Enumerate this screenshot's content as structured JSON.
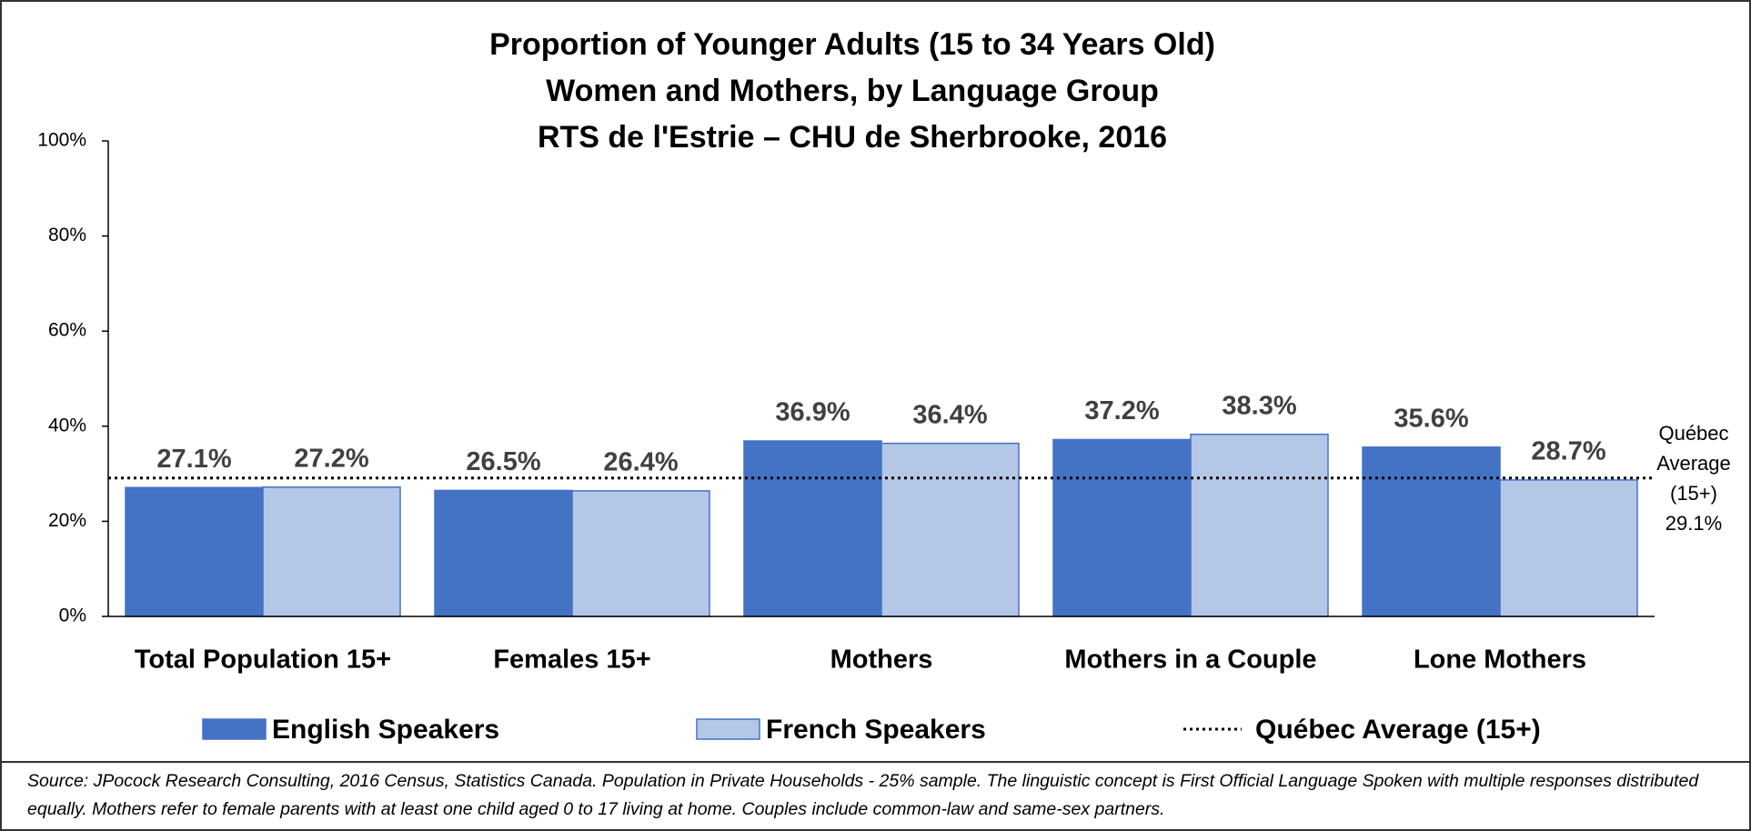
{
  "chart_data": {
    "type": "bar",
    "title": [
      "Proportion of Younger Adults (15 to 34 Years Old)",
      "Women and Mothers, by Language Group",
      "RTS de l'Estrie – CHU de Sherbrooke, 2016"
    ],
    "categories": [
      "Total Population 15+",
      "Females 15+",
      "Mothers",
      "Mothers in a Couple",
      "Lone Mothers"
    ],
    "series": [
      {
        "name": "English Speakers",
        "color": "#4472c4",
        "values": [
          27.1,
          26.5,
          36.9,
          37.2,
          35.6
        ],
        "value_labels": [
          "27.1%",
          "26.5%",
          "36.9%",
          "37.2%",
          "35.6%"
        ]
      },
      {
        "name": "French Speakers",
        "color": "#b4c7e7",
        "values": [
          27.2,
          26.4,
          36.4,
          38.3,
          28.7
        ],
        "value_labels": [
          "27.2%",
          "26.4%",
          "36.4%",
          "38.3%",
          "28.7%"
        ]
      }
    ],
    "reference_line": {
      "name": "Québec Average (15+)",
      "value": 29.1,
      "value_label": "29.1%",
      "color": "#000000",
      "style": "dotted"
    },
    "ylim": [
      0,
      100
    ],
    "yticks": [
      {
        "value": 0,
        "label": "0%"
      },
      {
        "value": 20,
        "label": "20%"
      },
      {
        "value": 40,
        "label": "40%"
      },
      {
        "value": 60,
        "label": "60%"
      },
      {
        "value": 80,
        "label": "80%"
      },
      {
        "value": 100,
        "label": "100%"
      }
    ],
    "grid": false,
    "legend": "bottom",
    "footnote": "Source: JPocock Research Consulting, 2016 Census, Statistics Canada. Population in Private Households - 25% sample. The linguistic concept is First Official Language Spoken with multiple responses distributed equally. Mothers refer to female parents with at least one child aged 0 to 17 living at home. Couples include common-law and same-sex partners."
  }
}
